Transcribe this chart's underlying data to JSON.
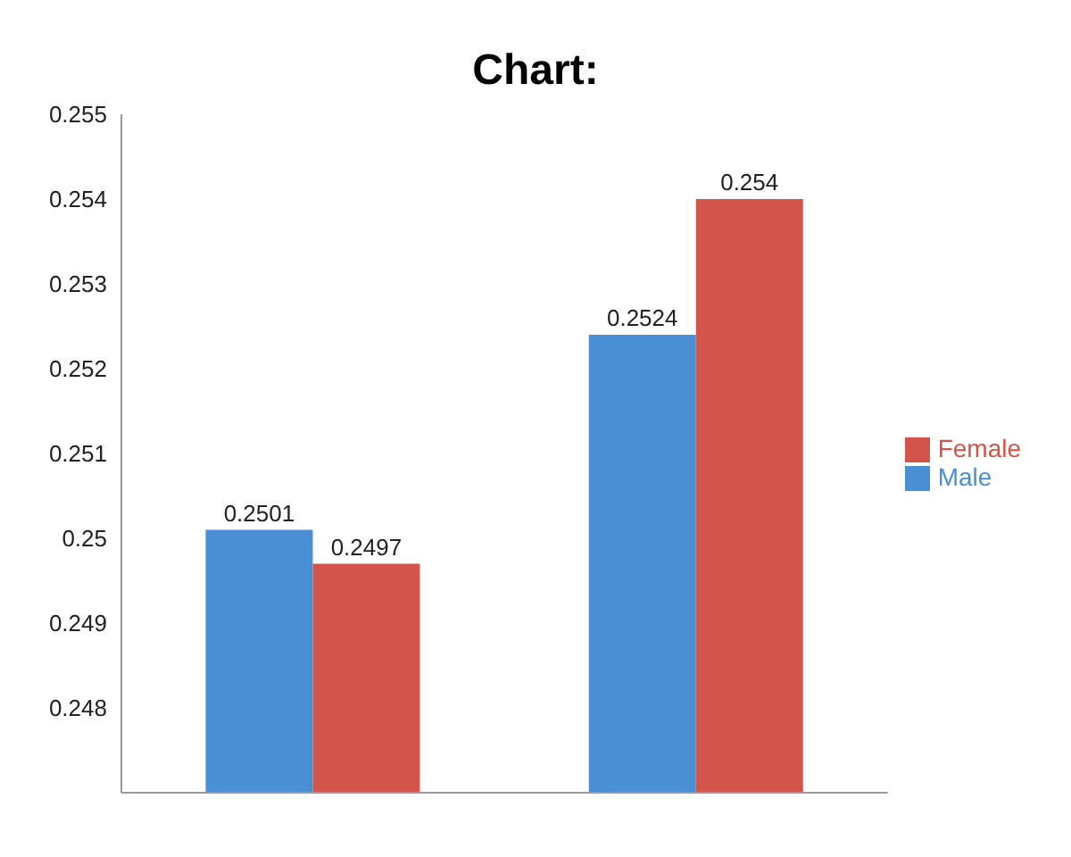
{
  "chart_data": {
    "type": "bar",
    "title": "Chart:",
    "categories": [
      null,
      null
    ],
    "series": [
      {
        "name": "Male",
        "color": "#4a8fd4",
        "values": [
          0.2501,
          0.2524
        ]
      },
      {
        "name": "Female",
        "color": "#d2544a",
        "values": [
          0.2497,
          0.254
        ]
      }
    ],
    "ylim": [
      0.247,
      0.255
    ],
    "yticks": [
      0.248,
      0.249,
      0.25,
      0.251,
      0.252,
      0.253,
      0.254,
      0.255
    ],
    "data_labels": true,
    "legend": "right",
    "grid": false
  }
}
